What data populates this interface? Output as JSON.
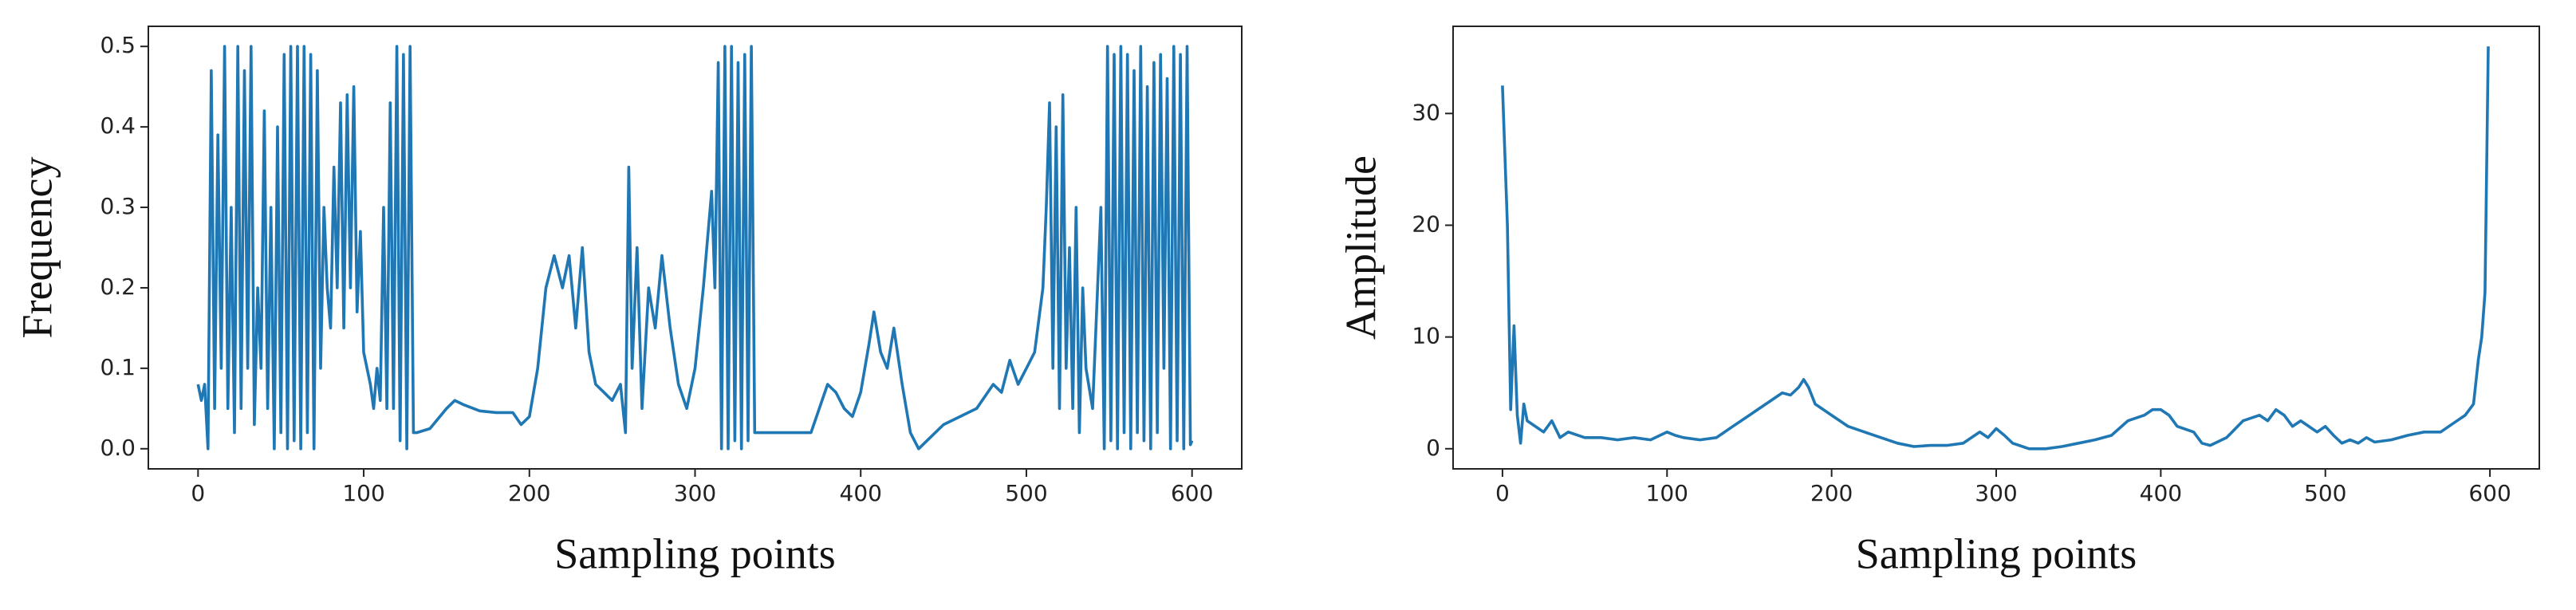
{
  "chart_data": [
    {
      "type": "line",
      "x_label": "Sampling points",
      "y_label": "Frequency",
      "color": "#1f77b4",
      "xlim": [
        -30,
        630
      ],
      "ylim": [
        -0.025,
        0.525
      ],
      "xticks": [
        0,
        100,
        200,
        300,
        400,
        500,
        600
      ],
      "yticks": [
        {
          "value": 0,
          "label": "0.0"
        },
        0.1,
        0.2,
        0.3,
        0.4,
        0.5
      ],
      "x": [
        0,
        2,
        4,
        6,
        8,
        10,
        12,
        14,
        16,
        18,
        20,
        22,
        24,
        26,
        28,
        30,
        32,
        34,
        36,
        38,
        40,
        42,
        44,
        46,
        48,
        50,
        52,
        54,
        56,
        58,
        60,
        62,
        64,
        66,
        68,
        70,
        72,
        74,
        76,
        78,
        80,
        82,
        84,
        86,
        88,
        90,
        92,
        94,
        96,
        98,
        100,
        102,
        104,
        106,
        108,
        110,
        112,
        114,
        116,
        118,
        120,
        122,
        124,
        126,
        128,
        130,
        132,
        140,
        150,
        155,
        160,
        170,
        180,
        190,
        195,
        200,
        205,
        210,
        215,
        220,
        224,
        228,
        232,
        236,
        240,
        245,
        250,
        255,
        258,
        260,
        262,
        265,
        268,
        272,
        276,
        280,
        285,
        290,
        295,
        300,
        305,
        310,
        312,
        314,
        316,
        318,
        320,
        322,
        324,
        326,
        328,
        330,
        332,
        334,
        336,
        340,
        350,
        360,
        370,
        375,
        380,
        385,
        390,
        395,
        400,
        405,
        408,
        412,
        416,
        420,
        425,
        430,
        435,
        440,
        450,
        460,
        470,
        480,
        485,
        490,
        495,
        500,
        505,
        510,
        512,
        514,
        516,
        518,
        520,
        522,
        524,
        526,
        528,
        530,
        532,
        534,
        536,
        540,
        545,
        547,
        549,
        551,
        553,
        555,
        557,
        559,
        561,
        563,
        565,
        567,
        569,
        571,
        573,
        575,
        577,
        579,
        581,
        583,
        585,
        587,
        589,
        591,
        593,
        595,
        597,
        599,
        600
      ],
      "values": [
        0.08,
        0.06,
        0.08,
        0.0,
        0.47,
        0.05,
        0.39,
        0.1,
        0.5,
        0.05,
        0.3,
        0.02,
        0.5,
        0.05,
        0.47,
        0.1,
        0.5,
        0.03,
        0.2,
        0.1,
        0.42,
        0.05,
        0.3,
        0.0,
        0.4,
        0.02,
        0.49,
        0.0,
        0.5,
        0.01,
        0.5,
        0.0,
        0.5,
        0.02,
        0.49,
        0.0,
        0.47,
        0.1,
        0.3,
        0.2,
        0.15,
        0.35,
        0.2,
        0.43,
        0.15,
        0.44,
        0.2,
        0.45,
        0.17,
        0.27,
        0.12,
        0.1,
        0.08,
        0.05,
        0.1,
        0.06,
        0.3,
        0.05,
        0.43,
        0.05,
        0.5,
        0.01,
        0.49,
        0.0,
        0.5,
        0.02,
        0.02,
        0.025,
        0.05,
        0.06,
        0.055,
        0.047,
        0.045,
        0.045,
        0.03,
        0.04,
        0.1,
        0.2,
        0.24,
        0.2,
        0.24,
        0.15,
        0.25,
        0.12,
        0.08,
        0.07,
        0.06,
        0.08,
        0.02,
        0.35,
        0.1,
        0.25,
        0.05,
        0.2,
        0.15,
        0.24,
        0.15,
        0.08,
        0.05,
        0.1,
        0.2,
        0.32,
        0.2,
        0.48,
        0.0,
        0.5,
        0.0,
        0.5,
        0.01,
        0.48,
        0.0,
        0.49,
        0.01,
        0.5,
        0.02,
        0.02,
        0.02,
        0.02,
        0.02,
        0.05,
        0.08,
        0.07,
        0.05,
        0.04,
        0.07,
        0.13,
        0.17,
        0.12,
        0.1,
        0.15,
        0.08,
        0.02,
        0.0,
        0.01,
        0.03,
        0.04,
        0.05,
        0.08,
        0.07,
        0.11,
        0.08,
        0.1,
        0.12,
        0.2,
        0.3,
        0.43,
        0.1,
        0.4,
        0.05,
        0.44,
        0.1,
        0.25,
        0.05,
        0.3,
        0.02,
        0.2,
        0.1,
        0.05,
        0.3,
        0.0,
        0.5,
        0.01,
        0.49,
        0.0,
        0.5,
        0.02,
        0.49,
        0.0,
        0.47,
        0.02,
        0.5,
        0.01,
        0.45,
        0.0,
        0.48,
        0.02,
        0.49,
        0.1,
        0.46,
        0.0,
        0.5,
        0.01,
        0.49,
        0.0,
        0.5,
        0.005,
        0.01
      ]
    },
    {
      "type": "line",
      "x_label": "Sampling points",
      "y_label": "Amplitude",
      "color": "#1f77b4",
      "xlim": [
        -30,
        630
      ],
      "ylim": [
        -1.8,
        37.8
      ],
      "xticks": [
        0,
        100,
        200,
        300,
        400,
        500,
        600
      ],
      "yticks": [
        0,
        10,
        20,
        30
      ],
      "x": [
        0,
        3,
        5,
        7,
        9,
        11,
        13,
        15,
        20,
        25,
        30,
        35,
        40,
        50,
        60,
        70,
        80,
        90,
        100,
        105,
        110,
        120,
        130,
        140,
        150,
        160,
        170,
        175,
        180,
        183,
        186,
        190,
        200,
        210,
        220,
        230,
        240,
        250,
        260,
        270,
        280,
        290,
        295,
        300,
        305,
        310,
        320,
        330,
        340,
        350,
        360,
        370,
        380,
        390,
        395,
        400,
        405,
        410,
        420,
        425,
        430,
        440,
        450,
        460,
        465,
        470,
        475,
        480,
        485,
        490,
        495,
        500,
        505,
        510,
        515,
        520,
        525,
        530,
        540,
        550,
        560,
        570,
        580,
        585,
        590,
        593,
        595,
        597,
        599
      ],
      "values": [
        32.5,
        20,
        3.5,
        11,
        3,
        0.5,
        4,
        2.5,
        2,
        1.5,
        2.5,
        1,
        1.5,
        1,
        1,
        0.8,
        1,
        0.8,
        1.5,
        1.2,
        1,
        0.8,
        1,
        2,
        3,
        4,
        5,
        4.8,
        5.5,
        6.2,
        5.5,
        4,
        3,
        2,
        1.5,
        1,
        0.5,
        0.2,
        0.3,
        0.3,
        0.5,
        1.5,
        1,
        1.8,
        1.2,
        0.5,
        0,
        0,
        0.2,
        0.5,
        0.8,
        1.2,
        2.5,
        3,
        3.5,
        3.5,
        3,
        2,
        1.5,
        0.5,
        0.3,
        1,
        2.5,
        3,
        2.5,
        3.5,
        3,
        2,
        2.5,
        2,
        1.5,
        2,
        1.2,
        0.5,
        0.8,
        0.5,
        1,
        0.6,
        0.8,
        1.2,
        1.5,
        1.5,
        2.5,
        3,
        4,
        8,
        10,
        14,
        36
      ]
    }
  ]
}
